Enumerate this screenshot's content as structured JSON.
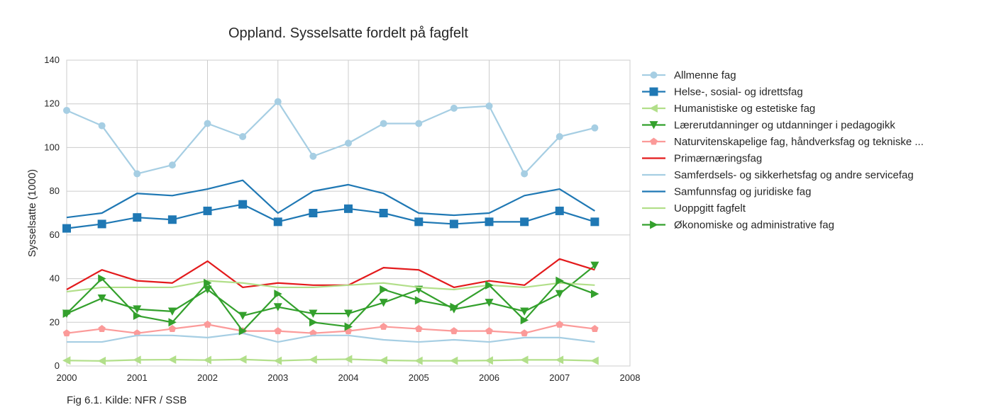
{
  "caption": "Fig 6.1. Kilde: NFR / SSB",
  "chart_data": {
    "type": "line",
    "title": "Oppland. Sysselsatte fordelt på fagfelt",
    "xlabel": "",
    "ylabel": "Sysselsatte (1000)",
    "xlim": [
      2000,
      2008
    ],
    "ylim": [
      0,
      140
    ],
    "x_ticks": [
      "2000",
      "2001",
      "2002",
      "2003",
      "2004",
      "2005",
      "2006",
      "2007",
      "2008"
    ],
    "y_ticks": [
      "0",
      "20",
      "40",
      "60",
      "80",
      "100",
      "120",
      "140"
    ],
    "grid": true,
    "legend_position": "right",
    "x": [
      2000,
      2000.5,
      2001,
      2001.5,
      2002,
      2002.5,
      2003,
      2003.5,
      2004,
      2004.5,
      2005,
      2005.5,
      2006,
      2006.5,
      2007,
      2007.5
    ],
    "series": [
      {
        "name": "Allmenne fag",
        "color": "#a6cee3",
        "marker": "circle",
        "values": [
          117,
          110,
          88,
          92,
          111,
          105,
          121,
          96,
          102,
          111,
          111,
          118,
          119,
          88,
          105,
          109
        ]
      },
      {
        "name": "Helse-, sosial- og idrettsfag",
        "color": "#1f78b4",
        "marker": "square",
        "values": [
          63,
          65,
          68,
          67,
          71,
          74,
          66,
          70,
          72,
          70,
          66,
          65,
          66,
          66,
          71,
          66
        ]
      },
      {
        "name": "Humanistiske og estetiske fag",
        "color": "#b2df8a",
        "marker": "triangle-left",
        "values": [
          2.5,
          2.3,
          2.8,
          2.9,
          2.7,
          3.0,
          2.4,
          2.9,
          3.1,
          2.6,
          2.4,
          2.4,
          2.5,
          2.8,
          2.8,
          2.4
        ]
      },
      {
        "name": "Lærerutdanninger og utdanninger i pedagogikk",
        "color": "#33a02c",
        "marker": "triangle-down",
        "values": [
          24,
          31,
          26,
          25,
          35,
          23,
          27,
          24,
          24,
          29,
          35,
          26,
          29,
          25,
          33,
          46
        ]
      },
      {
        "name": "Naturvitenskapelige fag, håndverksfag og tekniske ...",
        "color": "#fb9a99",
        "marker": "pentagon",
        "values": [
          15,
          17,
          15,
          17,
          19,
          16,
          16,
          15,
          16,
          18,
          17,
          16,
          16,
          15,
          19,
          17
        ]
      },
      {
        "name": "Primærnæringsfag",
        "color": "#e31a1c",
        "marker": "none",
        "values": [
          35,
          44,
          39,
          38,
          48,
          36,
          38,
          37,
          37,
          45,
          44,
          36,
          39,
          37,
          49,
          44
        ]
      },
      {
        "name": "Samferdsels- og sikkerhetsfag og andre servicefag",
        "color": "#a6cee3",
        "marker": "none",
        "values": [
          11,
          11,
          14,
          14,
          13,
          15,
          11,
          14,
          14,
          12,
          11,
          12,
          11,
          13,
          13,
          11
        ]
      },
      {
        "name": "Samfunnsfag og juridiske fag",
        "color": "#1f78b4",
        "marker": "none",
        "values": [
          68,
          70,
          79,
          78,
          81,
          85,
          70,
          80,
          83,
          79,
          70,
          69,
          70,
          78,
          81,
          71
        ]
      },
      {
        "name": "Uoppgitt fagfelt",
        "color": "#b2df8a",
        "marker": "none",
        "values": [
          34,
          36,
          36,
          36,
          39,
          38,
          36,
          36,
          37,
          38,
          36,
          35,
          37,
          36,
          38,
          37
        ]
      },
      {
        "name": "Økonomiske og administrative fag",
        "color": "#33a02c",
        "marker": "triangle-right",
        "values": [
          24,
          40,
          23,
          20,
          38,
          16,
          33,
          20,
          18,
          35,
          30,
          27,
          37,
          21,
          39,
          33
        ]
      }
    ]
  }
}
